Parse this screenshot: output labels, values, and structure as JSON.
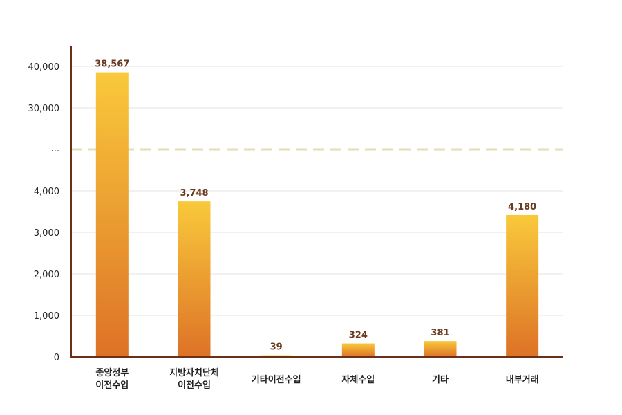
{
  "chart_data": {
    "type": "bar",
    "categories": [
      [
        "중앙정부",
        "이전수입"
      ],
      [
        "지방자치단체",
        "이전수입"
      ],
      [
        "기타이전수입"
      ],
      [
        "자체수입"
      ],
      [
        "기타"
      ],
      [
        "내부거래"
      ]
    ],
    "values": [
      38567,
      3748,
      39,
      324,
      381,
      4180
    ],
    "value_labels": [
      "38,567",
      "3,748",
      "39",
      "324",
      "381",
      "4,180"
    ],
    "yticks_lower": [
      {
        "value": 0,
        "label": "0"
      },
      {
        "value": 1000,
        "label": "1,000"
      },
      {
        "value": 2000,
        "label": "2,000"
      },
      {
        "value": 3000,
        "label": "3,000"
      },
      {
        "value": 4000,
        "label": "4,000"
      }
    ],
    "axis_break_label": "...",
    "yticks_upper": [
      {
        "value": 30000,
        "label": "30,000"
      },
      {
        "value": 40000,
        "label": "40,000"
      }
    ],
    "ylim_lower": [
      0,
      4000
    ],
    "ylim_upper": [
      30000,
      40000
    ],
    "axis_break": true,
    "grid": true,
    "colors": {
      "bar_top": "#f9c93b",
      "bar_bottom": "#dd7227",
      "axis": "#6b2f1a",
      "break_line": "#e8dbb8",
      "value_label": "#6b3a1f"
    }
  }
}
